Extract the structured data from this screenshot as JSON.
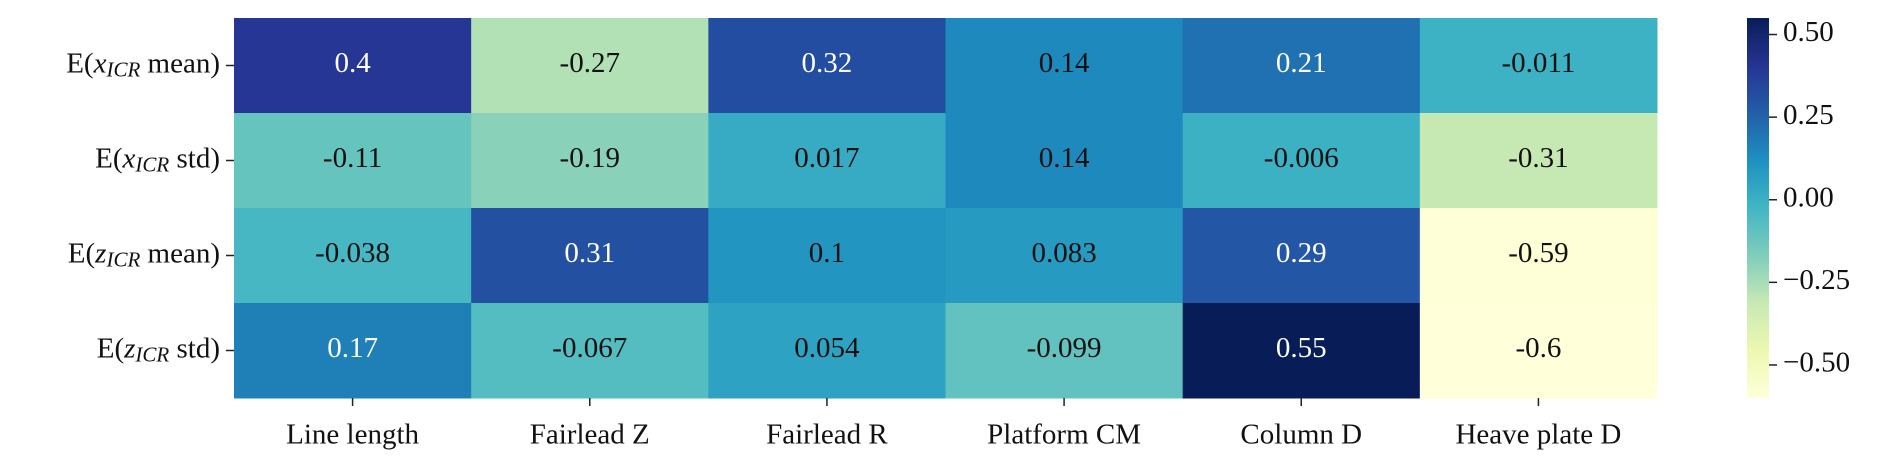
{
  "chart_data": {
    "type": "heatmap",
    "colormap": "YlGnBu",
    "x_categories": [
      "Line length",
      "Fairlead Z",
      "Fairlead R",
      "Platform CM",
      "Column D",
      "Heave plate D"
    ],
    "y_categories": [
      [
        "E(",
        "x",
        "ICR",
        " mean)"
      ],
      [
        "E(",
        "x",
        "ICR",
        " std)"
      ],
      [
        "E(",
        "z",
        "ICR",
        " mean)"
      ],
      [
        "E(",
        "z",
        "ICR",
        " std)"
      ]
    ],
    "values": [
      [
        0.4,
        -0.27,
        0.32,
        0.14,
        0.21,
        -0.011
      ],
      [
        -0.11,
        -0.19,
        0.017,
        0.14,
        -0.006,
        -0.31
      ],
      [
        -0.038,
        0.31,
        0.1,
        0.083,
        0.29,
        -0.59
      ],
      [
        0.17,
        -0.067,
        0.054,
        -0.099,
        0.55,
        -0.6
      ]
    ],
    "clim": [
      -0.6,
      0.55
    ],
    "cticks": [
      {
        "value": 0.5,
        "label": "0.50"
      },
      {
        "value": 0.25,
        "label": "0.25"
      },
      {
        "value": 0,
        "label": "0.00"
      },
      {
        "value": -0.25,
        "label": "−0.25"
      },
      {
        "value": -0.5,
        "label": "−0.50"
      }
    ]
  }
}
